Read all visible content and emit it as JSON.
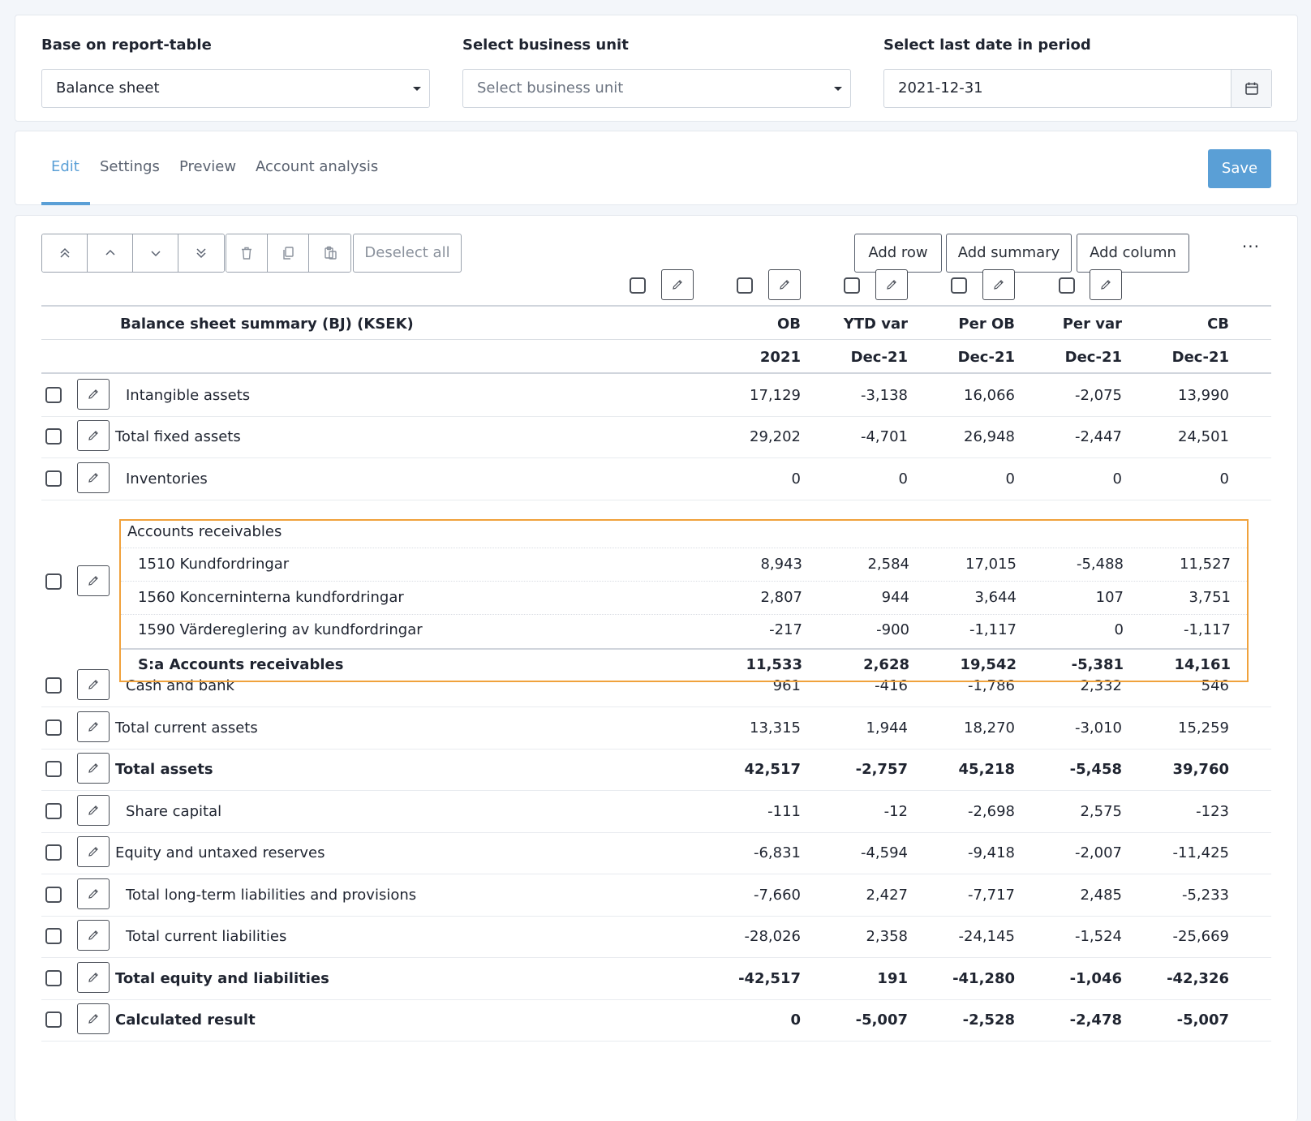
{
  "filters": {
    "report_table": {
      "label": "Base on report-table",
      "value": "Balance sheet"
    },
    "business_unit": {
      "label": "Select business unit",
      "placeholder": "Select business unit"
    },
    "last_date": {
      "label": "Select last date in period",
      "value": "2021-12-31"
    }
  },
  "tabs": [
    {
      "label": "Edit",
      "active": true
    },
    {
      "label": "Settings"
    },
    {
      "label": "Preview"
    },
    {
      "label": "Account analysis"
    }
  ],
  "save_label": "Save",
  "toolbar": {
    "deselect_all": "Deselect all",
    "add_row": "Add row",
    "add_summary": "Add summary",
    "add_column": "Add column",
    "more": "···"
  },
  "table": {
    "title": "Balance sheet summary (BJ) (KSEK)",
    "columns": [
      {
        "name": "OB",
        "period": "2021"
      },
      {
        "name": "YTD var",
        "period": "Dec-21"
      },
      {
        "name": "Per OB",
        "period": "Dec-21"
      },
      {
        "name": "Per var",
        "period": "Dec-21"
      },
      {
        "name": "CB",
        "period": "Dec-21"
      }
    ],
    "rows": [
      {
        "label": "Intangible assets",
        "values": [
          "17,129",
          "-3,138",
          "16,066",
          "-2,075",
          "13,990"
        ]
      },
      {
        "label": "Total fixed assets",
        "values": [
          "29,202",
          "-4,701",
          "26,948",
          "-2,447",
          "24,501"
        ]
      },
      {
        "label": "Inventories",
        "values": [
          "0",
          "0",
          "0",
          "0",
          "0"
        ]
      },
      {
        "label": "Cash and bank",
        "values": [
          "961",
          "-416",
          "-1,786",
          "2,332",
          "546"
        ]
      },
      {
        "label": "Total current assets",
        "values": [
          "13,315",
          "1,944",
          "18,270",
          "-3,010",
          "15,259"
        ]
      },
      {
        "label": "Total assets",
        "values": [
          "42,517",
          "-2,757",
          "45,218",
          "-5,458",
          "39,760"
        ]
      },
      {
        "label": "Share capital",
        "values": [
          "-111",
          "-12",
          "-2,698",
          "2,575",
          "-123"
        ]
      },
      {
        "label": "Equity and untaxed reserves",
        "values": [
          "-6,831",
          "-4,594",
          "-9,418",
          "-2,007",
          "-11,425"
        ]
      },
      {
        "label": "Total long-term liabilities and provisions",
        "values": [
          "-7,660",
          "2,427",
          "-7,717",
          "2,485",
          "-5,233"
        ]
      },
      {
        "label": "Total current liabilities",
        "values": [
          "-28,026",
          "2,358",
          "-24,145",
          "-1,524",
          "-25,669"
        ]
      },
      {
        "label": "Total equity and liabilities",
        "values": [
          "-42,517",
          "191",
          "-41,280",
          "-1,046",
          "-42,326"
        ]
      },
      {
        "label": "Calculated result",
        "values": [
          "0",
          "-5,007",
          "-2,528",
          "-2,478",
          "-5,007"
        ]
      }
    ],
    "group": {
      "label": "Accounts receivables",
      "accounts": [
        {
          "label": "1510 Kundfordringar",
          "values": [
            "8,943",
            "2,584",
            "17,015",
            "-5,488",
            "11,527"
          ]
        },
        {
          "label": "1560 Koncerninterna kundfordringar",
          "values": [
            "2,807",
            "944",
            "3,644",
            "107",
            "3,751"
          ]
        },
        {
          "label": "1590 Värdereglering av kundfordringar",
          "values": [
            "-217",
            "-900",
            "-1,117",
            "0",
            "-1,117"
          ]
        }
      ],
      "summary": {
        "label": "S:a Accounts receivables",
        "values": [
          "11,533",
          "2,628",
          "19,542",
          "-5,381",
          "14,161"
        ]
      }
    }
  }
}
